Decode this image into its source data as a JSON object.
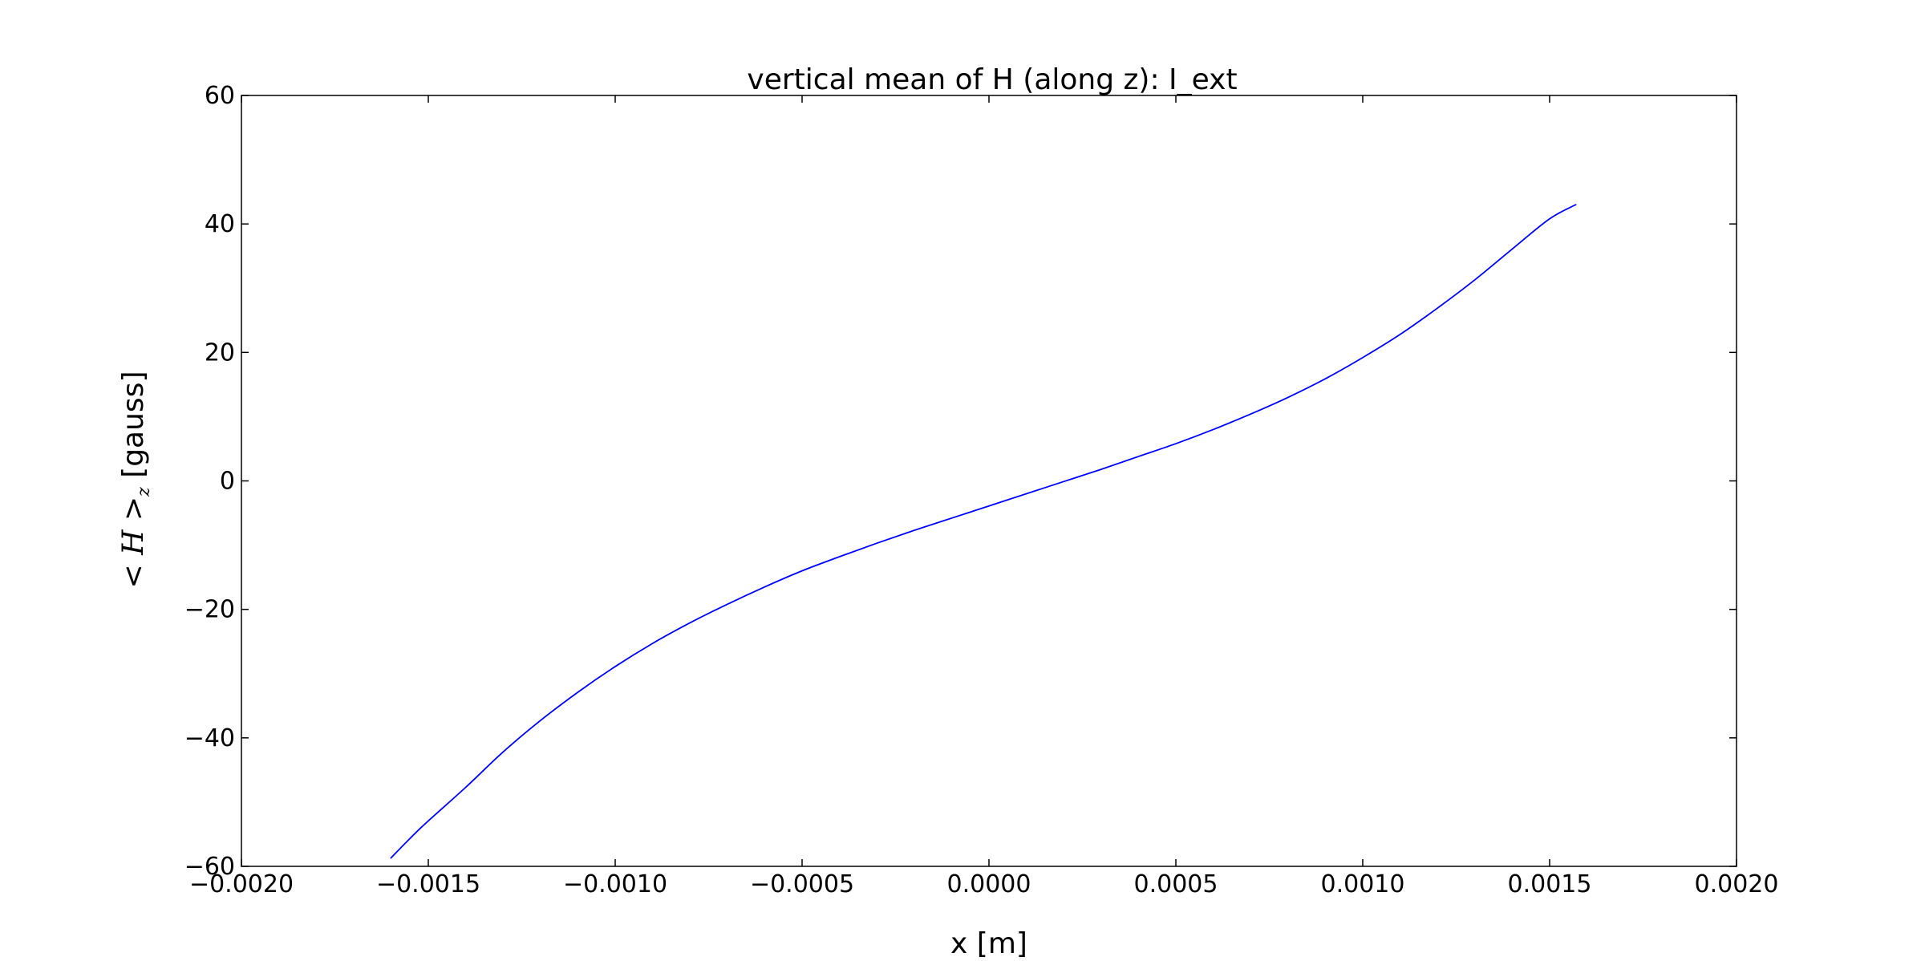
{
  "chart_data": {
    "type": "line",
    "title": "vertical mean of H (along z): I_ext",
    "xlabel": "x [m]",
    "ylabel": {
      "prefix": "< ",
      "symbol": "H",
      "middle": " >",
      "subscript": "z",
      "suffix": " [gauss]"
    },
    "xlim": [
      -0.002,
      0.002
    ],
    "ylim": [
      -60,
      60
    ],
    "xticks": [
      -0.002,
      -0.0015,
      -0.001,
      -0.0005,
      0.0,
      0.0005,
      0.001,
      0.0015,
      0.002
    ],
    "xtick_labels": [
      "−0.0020",
      "−0.0015",
      "−0.0010",
      "−0.0005",
      "0.0000",
      "0.0005",
      "0.0010",
      "0.0015",
      "0.0020"
    ],
    "yticks": [
      -60,
      -40,
      -20,
      0,
      20,
      40,
      60
    ],
    "ytick_labels": [
      "−60",
      "−40",
      "−20",
      "0",
      "20",
      "40",
      "60"
    ],
    "grid": false,
    "series": [
      {
        "color": "#0000ff",
        "x": [
          -0.0016,
          -0.00152,
          -0.0014,
          -0.0013,
          -0.0012,
          -0.0011,
          -0.001,
          -0.0009,
          -0.0008,
          -0.0007,
          -0.0006,
          -0.0005,
          -0.0004,
          -0.0003,
          -0.0002,
          -0.0001,
          0.0,
          0.0001,
          0.0002,
          0.0003,
          0.0004,
          0.0005,
          0.0006,
          0.0007,
          0.0008,
          0.0009,
          0.001,
          0.0011,
          0.0012,
          0.0013,
          0.0014,
          0.0015,
          0.00157
        ],
        "y": [
          -58.7,
          -54.0,
          -47.7,
          -42.2,
          -37.3,
          -32.9,
          -28.9,
          -25.3,
          -22.1,
          -19.2,
          -16.5,
          -14.0,
          -11.8,
          -9.7,
          -7.7,
          -5.8,
          -3.9,
          -2.0,
          -0.1,
          1.8,
          3.8,
          5.8,
          8.0,
          10.4,
          13.0,
          15.9,
          19.2,
          22.8,
          26.9,
          31.3,
          36.1,
          40.8,
          43.0
        ]
      }
    ]
  }
}
